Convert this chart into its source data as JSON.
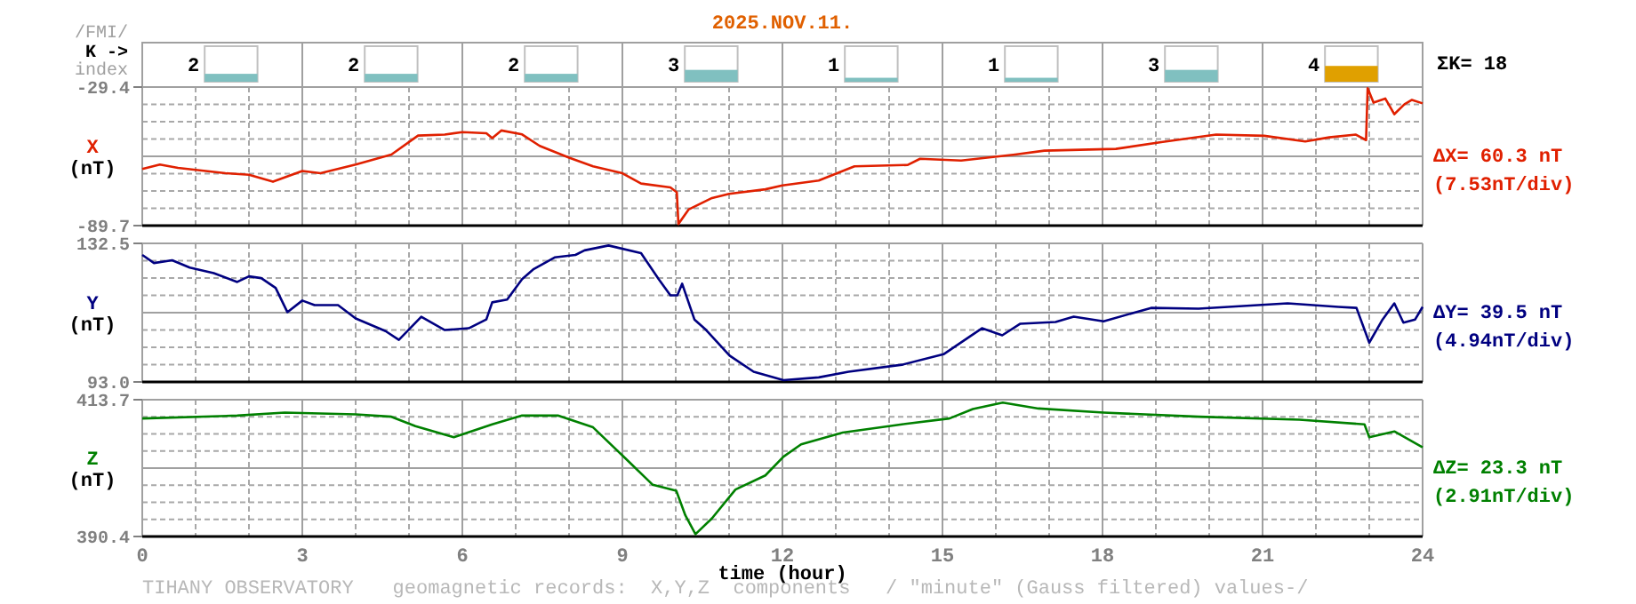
{
  "chart_data": [
    {
      "type": "bar",
      "title": "2025.NOV.11.",
      "ylabel": "K ->",
      "annotations": [
        "/FMI/",
        "index",
        "ΣK= 18"
      ],
      "categories": [
        null,
        null,
        null,
        null,
        null,
        null,
        null,
        null
      ],
      "values": [
        2,
        2,
        2,
        3,
        1,
        1,
        3,
        4
      ],
      "colors": [
        "#80c0c0",
        "#80c0c0",
        "#80c0c0",
        "#80c0c0",
        "#80c0c0",
        "#80c0c0",
        "#80c0c0",
        "#e0a000"
      ],
      "ylim": [
        0,
        9
      ],
      "data_labels": true,
      "tick_labels": false
    },
    {
      "type": "line",
      "ylabel": "X (nT)",
      "annotations": [
        "ΔX= 60.3 nT",
        "(7.53nT/div)"
      ],
      "xlim": [
        0,
        24
      ],
      "ylim": [
        -89.7,
        -29.4
      ],
      "grid": true,
      "tick_labels": "y",
      "xticks": [
        0,
        {
          "value": 1,
          "label": null
        },
        {
          "value": 2,
          "label": null
        },
        3,
        {
          "value": 4,
          "label": null
        },
        {
          "value": 5,
          "label": null
        },
        6,
        {
          "value": 7,
          "label": null
        },
        {
          "value": 8,
          "label": null
        },
        9,
        {
          "value": 10,
          "label": null
        },
        {
          "value": 11,
          "label": null
        },
        12,
        {
          "value": 13,
          "label": null
        },
        {
          "value": 14,
          "label": null
        },
        15,
        {
          "value": 16,
          "label": null
        },
        {
          "value": 17,
          "label": null
        },
        18,
        {
          "value": 19,
          "label": null
        },
        {
          "value": 20,
          "label": null
        },
        21,
        {
          "value": 22,
          "label": null
        },
        {
          "value": 23,
          "label": null
        },
        24
      ],
      "yticks": [
        -89.7,
        {
          "value": -82.16,
          "label": null
        },
        {
          "value": -74.63,
          "label": null
        },
        {
          "value": -67.09,
          "label": null
        },
        {
          "value": -59.55,
          "label": null
        },
        {
          "value": -52.01,
          "label": null
        },
        {
          "value": -44.48,
          "label": null
        },
        {
          "value": -36.94,
          "label": null
        },
        -29.4
      ],
      "x": [
        0,
        0.33,
        0.67,
        1.56,
        2.0,
        2.45,
        3.0,
        3.34,
        4.0,
        4.67,
        5.17,
        5.67,
        6.0,
        6.45,
        6.56,
        6.73,
        7.12,
        7.45,
        8.0,
        8.45,
        9.0,
        9.35,
        9.9,
        10.02,
        10.05,
        10.24,
        10.68,
        11.0,
        11.68,
        12.0,
        12.68,
        13.35,
        14.35,
        14.58,
        15.35,
        16.36,
        16.91,
        18.25,
        19.13,
        20.13,
        21.03,
        21.8,
        22.25,
        22.75,
        22.94,
        22.97,
        23.08,
        23.3,
        23.47,
        23.66,
        23.8,
        24.0
      ],
      "series": [
        {
          "color": "#e02000",
          "values": [
            -65.1,
            -63.1,
            -64.6,
            -66.9,
            -67.6,
            -70.6,
            -65.9,
            -66.9,
            -63.1,
            -58.8,
            -50.5,
            -50.1,
            -49.0,
            -49.5,
            -51.6,
            -48.3,
            -50.0,
            -55.0,
            -60.1,
            -63.9,
            -66.9,
            -71.4,
            -73.1,
            -75.2,
            -89.0,
            -82.7,
            -77.7,
            -75.9,
            -73.9,
            -72.2,
            -70.1,
            -63.9,
            -63.3,
            -60.6,
            -61.4,
            -58.8,
            -57.1,
            -56.3,
            -53.3,
            -50.1,
            -50.6,
            -53.1,
            -51.3,
            -50.1,
            -52.5,
            -29.9,
            -36.2,
            -34.4,
            -41.2,
            -36.9,
            -35.0,
            -36.5
          ]
        }
      ]
    },
    {
      "type": "line",
      "ylabel": "Y (nT)",
      "annotations": [
        "ΔY= 39.5 nT",
        "(4.94nT/div)"
      ],
      "xlim": [
        0,
        24
      ],
      "ylim": [
        93.0,
        132.5
      ],
      "grid": true,
      "tick_labels": "y",
      "xticks": [
        0,
        {
          "value": 1,
          "label": null
        },
        {
          "value": 2,
          "label": null
        },
        3,
        {
          "value": 4,
          "label": null
        },
        {
          "value": 5,
          "label": null
        },
        6,
        {
          "value": 7,
          "label": null
        },
        {
          "value": 8,
          "label": null
        },
        9,
        {
          "value": 10,
          "label": null
        },
        {
          "value": 11,
          "label": null
        },
        12,
        {
          "value": 13,
          "label": null
        },
        {
          "value": 14,
          "label": null
        },
        15,
        {
          "value": 16,
          "label": null
        },
        {
          "value": 17,
          "label": null
        },
        18,
        {
          "value": 19,
          "label": null
        },
        {
          "value": 20,
          "label": null
        },
        21,
        {
          "value": 22,
          "label": null
        },
        {
          "value": 23,
          "label": null
        },
        24
      ],
      "yticks": [
        {
          "value": 93.0,
          "label": "93.0"
        },
        {
          "value": 97.94,
          "label": null
        },
        {
          "value": 102.88,
          "label": null
        },
        {
          "value": 107.81,
          "label": null
        },
        {
          "value": 112.75,
          "label": null
        },
        {
          "value": 117.69,
          "label": null
        },
        {
          "value": 122.63,
          "label": null
        },
        {
          "value": 127.56,
          "label": null
        },
        132.5
      ],
      "x": [
        0,
        0.22,
        0.56,
        0.89,
        1.34,
        1.78,
        2.0,
        2.23,
        2.5,
        2.72,
        3.0,
        3.23,
        3.67,
        4.0,
        4.56,
        4.81,
        5.23,
        5.67,
        6.12,
        6.45,
        6.56,
        6.84,
        7.12,
        7.34,
        7.73,
        8.12,
        8.29,
        8.74,
        9.35,
        9.68,
        9.9,
        10.03,
        10.12,
        10.35,
        10.57,
        11.01,
        11.46,
        12.02,
        12.68,
        13.24,
        14.24,
        15.02,
        15.74,
        16.12,
        16.46,
        17.12,
        17.46,
        18.02,
        18.91,
        19.8,
        21.47,
        22.42,
        22.76,
        23.0,
        23.25,
        23.47,
        23.64,
        23.86,
        24.0
      ],
      "series": [
        {
          "color": "#000080",
          "values": [
            129.2,
            126.9,
            127.7,
            125.6,
            124.0,
            121.5,
            123.1,
            122.6,
            119.8,
            112.9,
            116.2,
            114.9,
            114.9,
            111.1,
            107.5,
            105.0,
            111.6,
            107.8,
            108.3,
            110.8,
            115.7,
            116.5,
            122.3,
            125.2,
            128.5,
            129.2,
            130.5,
            131.9,
            129.7,
            122.3,
            117.7,
            117.7,
            121.0,
            110.8,
            107.8,
            100.5,
            95.9,
            93.5,
            94.3,
            95.9,
            97.9,
            100.9,
            108.3,
            106.3,
            109.6,
            110.1,
            111.6,
            110.3,
            114.1,
            113.9,
            115.4,
            114.4,
            114.1,
            104.2,
            110.8,
            115.4,
            109.9,
            110.8,
            114.4
          ]
        }
      ]
    },
    {
      "type": "line",
      "ylabel": "Z (nT)",
      "xlabel": "time (hour)",
      "annotations": [
        "ΔZ= 23.3 nT",
        "(2.91nT/div)",
        "TIHANY OBSERVATORY",
        "geomagnetic records:  X,Y,Z  components   / \"minute\" (Gauss filtered) values-/"
      ],
      "xlim": [
        0,
        24
      ],
      "ylim": [
        390.4,
        413.7
      ],
      "grid": true,
      "xticks": [
        0,
        {
          "value": 1,
          "label": null
        },
        {
          "value": 2,
          "label": null
        },
        3,
        {
          "value": 4,
          "label": null
        },
        {
          "value": 5,
          "label": null
        },
        6,
        {
          "value": 7,
          "label": null
        },
        {
          "value": 8,
          "label": null
        },
        9,
        {
          "value": 10,
          "label": null
        },
        {
          "value": 11,
          "label": null
        },
        12,
        {
          "value": 13,
          "label": null
        },
        {
          "value": 14,
          "label": null
        },
        15,
        {
          "value": 16,
          "label": null
        },
        {
          "value": 17,
          "label": null
        },
        18,
        {
          "value": 19,
          "label": null
        },
        {
          "value": 20,
          "label": null
        },
        21,
        {
          "value": 22,
          "label": null
        },
        {
          "value": 23,
          "label": null
        },
        24
      ],
      "yticks": [
        390.4,
        {
          "value": 393.31,
          "label": null
        },
        {
          "value": 396.23,
          "label": null
        },
        {
          "value": 399.14,
          "label": null
        },
        {
          "value": 402.05,
          "label": null
        },
        {
          "value": 404.96,
          "label": null
        },
        {
          "value": 407.88,
          "label": null
        },
        {
          "value": 410.79,
          "label": null
        },
        413.7
      ],
      "x": [
        0,
        1.78,
        2.67,
        4.0,
        4.67,
        5.12,
        5.84,
        6.56,
        7.12,
        7.79,
        8.45,
        9.0,
        9.57,
        10.01,
        10.18,
        10.37,
        10.68,
        11.12,
        11.68,
        12.02,
        12.35,
        13.13,
        14.24,
        15.13,
        15.57,
        16.13,
        16.8,
        18.02,
        19.8,
        21.69,
        22.91,
        23.0,
        23.47,
        24.0
      ],
      "series": [
        {
          "color": "#008000",
          "values": [
            410.5,
            411.0,
            411.5,
            411.2,
            410.8,
            409.2,
            407.3,
            409.5,
            411.0,
            411.0,
            409.0,
            404.2,
            399.2,
            398.2,
            394.0,
            390.8,
            393.5,
            398.4,
            400.8,
            404.0,
            406.1,
            408.1,
            409.5,
            410.5,
            412.1,
            413.2,
            412.2,
            411.5,
            410.8,
            410.3,
            409.5,
            407.3,
            408.3,
            405.6
          ]
        }
      ]
    }
  ]
}
